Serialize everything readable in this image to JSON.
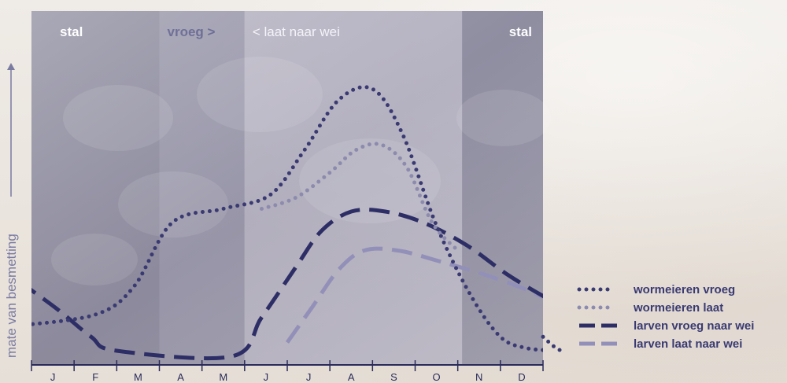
{
  "chart_data": {
    "type": "line",
    "ylabel": "mate van besmetting",
    "xlabel": "",
    "months": [
      "J",
      "F",
      "M",
      "A",
      "M",
      "J",
      "J",
      "A",
      "S",
      "O",
      "N",
      "D"
    ],
    "periods": [
      {
        "label": "stal",
        "from": 0,
        "to": 3,
        "shade": "#4a4a6b"
      },
      {
        "label": "vroeg >",
        "from": 3,
        "to": 5,
        "shade": "#5c5c7e"
      },
      {
        "label": "< laat naar wei",
        "from": 5,
        "to": 10.1,
        "shade": "#8a88a3"
      },
      {
        "label": "stal",
        "from": 10.1,
        "to": 12,
        "shade": "#4a4a6b"
      }
    ],
    "ylim": [
      0,
      100
    ],
    "series": [
      {
        "name": "wormeieren vroeg",
        "color": "#3a3a72",
        "style": "dotted",
        "points": [
          [
            -0.3,
            9
          ],
          [
            1.5,
            13
          ],
          [
            2.4,
            23
          ],
          [
            3.3,
            46
          ],
          [
            4.5,
            51
          ],
          [
            5.6,
            56
          ],
          [
            6.4,
            72
          ],
          [
            7.2,
            90
          ],
          [
            8,
            94
          ],
          [
            8.7,
            78
          ],
          [
            9.5,
            45
          ],
          [
            10.3,
            20
          ],
          [
            11,
            5
          ],
          [
            11.6,
            1
          ],
          [
            12.3,
            0
          ]
        ]
      },
      {
        "name": "wormeieren laat",
        "color": "#8c8bae",
        "style": "dotted",
        "points": [
          [
            5.4,
            51
          ],
          [
            6.2,
            55
          ],
          [
            7,
            64
          ],
          [
            7.6,
            72
          ],
          [
            8.2,
            74
          ],
          [
            8.8,
            66
          ],
          [
            9.4,
            46
          ],
          [
            10,
            36
          ]
        ]
      },
      {
        "name": "larven vroeg naar wei",
        "color": "#2e2e66",
        "style": "dashed",
        "points": [
          [
            -0.3,
            25
          ],
          [
            0.6,
            15
          ],
          [
            1.4,
            5
          ],
          [
            2,
            0
          ],
          [
            4.7,
            -2
          ],
          [
            5.4,
            12
          ],
          [
            6.2,
            30
          ],
          [
            6.8,
            43
          ],
          [
            7.5,
            50
          ],
          [
            8.3,
            50
          ],
          [
            9.2,
            46
          ],
          [
            10.2,
            38
          ],
          [
            11.2,
            27
          ],
          [
            12.3,
            17
          ]
        ]
      },
      {
        "name": "larven laat naar wei",
        "color": "#9290b8",
        "style": "dashed",
        "points": [
          [
            6,
            3
          ],
          [
            6.6,
            16
          ],
          [
            7.2,
            29
          ],
          [
            7.8,
            36
          ],
          [
            8.6,
            36
          ],
          [
            9.6,
            32
          ],
          [
            10.7,
            27
          ],
          [
            11.6,
            22
          ],
          [
            12.3,
            17
          ]
        ]
      }
    ],
    "legend": {
      "placement": "bottom-right",
      "items": [
        {
          "label": "wormeieren vroeg",
          "color": "#3a3a72",
          "style": "dotted"
        },
        {
          "label": "wormeieren laat",
          "color": "#8c8bae",
          "style": "dotted"
        },
        {
          "label": "larven vroeg naar wei",
          "color": "#2e2e66",
          "style": "dashed"
        },
        {
          "label": "larven laat naar wei",
          "color": "#9290b8",
          "style": "dashed"
        }
      ]
    }
  }
}
